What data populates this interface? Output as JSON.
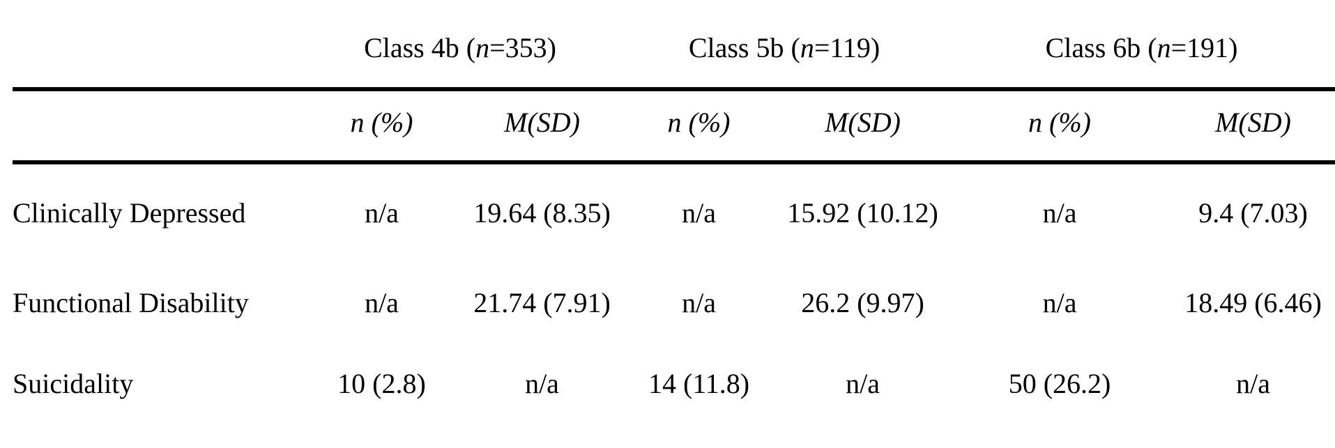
{
  "page": {
    "background_color": "#ffffff",
    "text_color": "#000000",
    "rule_color": "#000000"
  },
  "table": {
    "column_groups": [
      {
        "prefix": "Class 4b (",
        "n_symbol": "n",
        "suffix": "=353)"
      },
      {
        "prefix": "Class 5b (",
        "n_symbol": "n",
        "suffix": "=119)"
      },
      {
        "prefix": "Class 6b (",
        "n_symbol": "n",
        "suffix": "=191)"
      }
    ],
    "subheaders": {
      "count": "n (%)",
      "mean_sd": "M(SD)"
    },
    "rows": [
      {
        "label": "Clinically Depressed",
        "cells": [
          "n/a",
          "19.64 (8.35)",
          "n/a",
          "15.92 (10.12)",
          "n/a",
          "9.4 (7.03)"
        ]
      },
      {
        "label": "Functional Disability",
        "cells": [
          "n/a",
          "21.74 (7.91)",
          "n/a",
          "26.2 (9.97)",
          "n/a",
          "18.49 (6.46)"
        ]
      },
      {
        "label": "Suicidality",
        "cells": [
          "10 (2.8)",
          "n/a",
          "14 (11.8)",
          "n/a",
          "50 (26.2)",
          "n/a"
        ]
      }
    ]
  }
}
